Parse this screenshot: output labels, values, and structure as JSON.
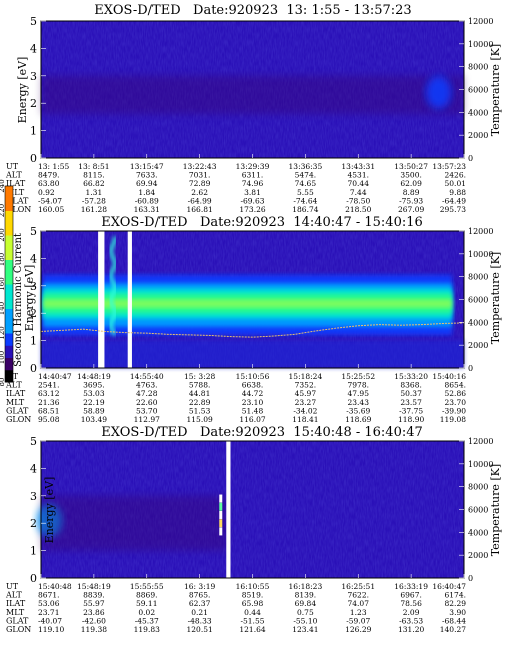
{
  "chart_data": [
    {
      "type": "heatmap",
      "title": "EXOS-D/TED   Date:920923  13: 1:55 - 13:57:23",
      "ylabel": "Energy [eV]",
      "y2label": "Temperature [K]",
      "ylim": [
        0,
        5
      ],
      "y2lim": [
        0,
        12000
      ],
      "yticks": [
        "0",
        "1",
        "2",
        "3",
        "4",
        "5"
      ],
      "y2ticks": [
        "0",
        "2000",
        "4000",
        "6000",
        "8000",
        "10000",
        "12000"
      ],
      "ephemeris": {
        "labels": [
          "UT",
          "ALT",
          "ILAT",
          "MLT",
          "GLAT",
          "GLON"
        ],
        "columns": [
          [
            "13: 1:55",
            "8479.",
            "63.80",
            "0.92",
            "-54.07",
            "160.05"
          ],
          [
            "13: 8:51",
            "8115.",
            "66.82",
            "1.31",
            "-57.28",
            "161.28"
          ],
          [
            "13:15:47",
            "7633.",
            "69.94",
            "1.84",
            "-60.89",
            "163.31"
          ],
          [
            "13:22:43",
            "7031.",
            "72.89",
            "2.62",
            "-64.99",
            "166.81"
          ],
          [
            "13:29:39",
            "6311.",
            "74.96",
            "3.81",
            "-69.63",
            "173.26"
          ],
          [
            "13:36:35",
            "5474.",
            "74.65",
            "5.55",
            "-74.64",
            "186.74"
          ],
          [
            "13:43:31",
            "4531.",
            "70.44",
            "7.44",
            "-78.50",
            "218.50"
          ],
          [
            "13:50:27",
            "3500.",
            "62.09",
            "8.89",
            "-75.93",
            "267.09"
          ],
          [
            "13:57:23",
            "2426.",
            "50.01",
            "9.88",
            "-64.49",
            "295.73"
          ]
        ]
      },
      "features": [
        {
          "kind": "faint-band",
          "t_start": 0.0,
          "t_end": 1.0,
          "e_low": 1.6,
          "e_high": 3.0,
          "level": 95
        },
        {
          "kind": "blob",
          "t_center": 0.94,
          "e_center": 2.4,
          "width": 0.06,
          "height": 1.2,
          "level": 110
        }
      ],
      "temperature_curve": []
    },
    {
      "type": "heatmap",
      "title": "EXOS-D/TED   Date:920923  14:40:47 - 15:40:16",
      "ylabel": "Energy [eV]",
      "y2label": "Temperature [K]",
      "ylim": [
        0,
        5
      ],
      "y2lim": [
        0,
        12000
      ],
      "yticks": [
        "0",
        "1",
        "2",
        "3",
        "4",
        "5"
      ],
      "y2ticks": [
        "0",
        "2000",
        "4000",
        "6000",
        "8000",
        "10000",
        "12000"
      ],
      "ephemeris": {
        "labels": [
          "UT",
          "ALT",
          "ILAT",
          "MLT",
          "GLAT",
          "GLON"
        ],
        "columns": [
          [
            "14:40:47",
            "2541.",
            "63.12",
            "21.36",
            "68.51",
            "95.08"
          ],
          [
            "14:48:19",
            "3695.",
            "53.03",
            "22.19",
            "58.89",
            "103.49"
          ],
          [
            "14:55:40",
            "4763.",
            "47.28",
            "22.60",
            "53.70",
            "112.97"
          ],
          [
            "15: 3:28",
            "5788.",
            "44.81",
            "22.89",
            "51.53",
            "115.09"
          ],
          [
            "15:10:56",
            "6638.",
            "44.72",
            "23.10",
            "51.48",
            "116.07"
          ],
          [
            "15:18:24",
            "7352.",
            "45.97",
            "23.27",
            "-34.02",
            "118.41"
          ],
          [
            "15:25:52",
            "7978.",
            "47.95",
            "23.43",
            "-35.69",
            "118.69"
          ],
          [
            "15:33:20",
            "8368.",
            "50.37",
            "23.57",
            "-37.75",
            "118.90"
          ],
          [
            "15:40:16",
            "8654.",
            "52.86",
            "23.70",
            "-39.90",
            "119.08"
          ]
        ]
      },
      "gaps": [
        [
          0.135,
          0.15
        ],
        [
          0.205,
          0.215
        ]
      ],
      "features": [
        {
          "kind": "main-band",
          "t_start": 0.0,
          "t_end": 1.0
        },
        {
          "kind": "spike",
          "t_center": 0.17,
          "e_low": 1.2,
          "e_high": 4.8
        }
      ],
      "temperature_curve": [
        [
          0.0,
          3200
        ],
        [
          0.05,
          3300
        ],
        [
          0.1,
          3400
        ],
        [
          0.15,
          3200
        ],
        [
          0.2,
          3100
        ],
        [
          0.25,
          3050
        ],
        [
          0.3,
          2950
        ],
        [
          0.35,
          2900
        ],
        [
          0.4,
          2850
        ],
        [
          0.45,
          2750
        ],
        [
          0.5,
          2700
        ],
        [
          0.55,
          2800
        ],
        [
          0.6,
          2950
        ],
        [
          0.65,
          3250
        ],
        [
          0.7,
          3500
        ],
        [
          0.75,
          3700
        ],
        [
          0.8,
          3800
        ],
        [
          0.85,
          3750
        ],
        [
          0.9,
          3800
        ],
        [
          0.95,
          3900
        ],
        [
          1.0,
          3950
        ]
      ],
      "colorbar": {
        "label": "Second Harmonic Current",
        "ticks": [
          "80",
          "100",
          "120",
          "140",
          "160",
          "180",
          "200",
          "220",
          "240"
        ]
      }
    },
    {
      "type": "heatmap",
      "title": "EXOS-D/TED   Date:920923  15:40:48 - 16:40:47",
      "ylabel": "Energy [eV]",
      "y2label": "Temperature [K]",
      "ylim": [
        0,
        5
      ],
      "y2lim": [
        0,
        12000
      ],
      "yticks": [
        "0",
        "1",
        "2",
        "3",
        "4",
        "5"
      ],
      "y2ticks": [
        "0",
        "2000",
        "4000",
        "6000",
        "8000",
        "10000",
        "12000"
      ],
      "ephemeris": {
        "labels": [
          "UT",
          "ALT",
          "ILAT",
          "MLT",
          "GLAT",
          "GLON"
        ],
        "columns": [
          [
            "15:40:48",
            "8671.",
            "53.06",
            "23.71",
            "-40.07",
            "119.10"
          ],
          [
            "15:48:19",
            "8839.",
            "55.97",
            "23.86",
            "-42.60",
            "119.38"
          ],
          [
            "15:55:55",
            "8869.",
            "59.11",
            "0.02",
            "-45.37",
            "119.83"
          ],
          [
            "16: 3:19",
            "8765.",
            "62.37",
            "0.21",
            "-48.33",
            "120.51"
          ],
          [
            "16:10:55",
            "8519.",
            "65.98",
            "0.44",
            "-51.55",
            "121.64"
          ],
          [
            "16:18:23",
            "8139.",
            "69.84",
            "0.75",
            "-55.10",
            "123.41"
          ],
          [
            "16:25:51",
            "7622.",
            "74.07",
            "1.23",
            "-59.07",
            "126.29"
          ],
          [
            "16:33:19",
            "6967.",
            "78.56",
            "2.09",
            "-63.53",
            "131.20"
          ],
          [
            "16:40:47",
            "6174.",
            "82.29",
            "3.90",
            "-68.44",
            "140.27"
          ]
        ]
      },
      "gaps": [
        [
          0.438,
          0.448
        ]
      ],
      "features": [
        {
          "kind": "blob",
          "t_center": 0.02,
          "e_center": 2.1,
          "width": 0.06,
          "height": 1.2,
          "level": 120
        },
        {
          "kind": "faint-band",
          "t_start": 0.0,
          "t_end": 0.44,
          "e_low": 1.0,
          "e_high": 3.0,
          "level": 95
        },
        {
          "kind": "dots",
          "t_center": 0.425,
          "e_low": 1.5,
          "e_high": 3.0
        }
      ],
      "temperature_curve": []
    }
  ]
}
